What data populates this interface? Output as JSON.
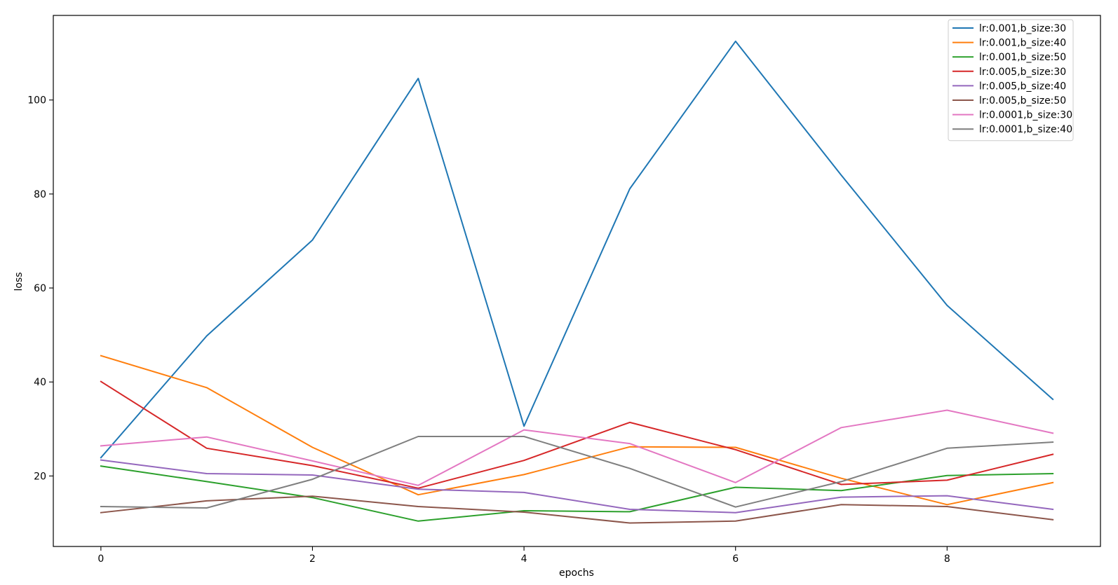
{
  "chart_data": {
    "type": "line",
    "title": "",
    "xlabel": "epochs",
    "ylabel": "loss",
    "xlim": [
      -0.45,
      9.45
    ],
    "ylim": [
      5,
      118
    ],
    "xticks": [
      0,
      2,
      4,
      6,
      8
    ],
    "yticks": [
      20,
      40,
      60,
      80,
      100
    ],
    "grid": false,
    "legend_position": "top-right",
    "x": [
      0,
      1,
      2,
      3,
      4,
      5,
      6,
      7,
      8,
      9
    ],
    "series": [
      {
        "name": "lr:0.001,b_size:30",
        "color": "#1f77b4",
        "values": [
          23.9,
          49.8,
          70.2,
          104.6,
          30.6,
          81.1,
          112.5,
          84.0,
          56.3,
          36.3
        ]
      },
      {
        "name": "lr:0.001,b_size:40",
        "color": "#ff7f0e",
        "values": [
          45.6,
          38.8,
          26.1,
          16.0,
          20.3,
          26.2,
          26.1,
          19.5,
          13.9,
          18.6
        ]
      },
      {
        "name": "lr:0.001,b_size:50",
        "color": "#2ca02c",
        "values": [
          22.1,
          18.8,
          15.4,
          10.4,
          12.6,
          12.4,
          17.6,
          16.9,
          20.1,
          20.5
        ]
      },
      {
        "name": "lr:0.005,b_size:30",
        "color": "#d62728",
        "values": [
          40.1,
          25.9,
          22.2,
          17.4,
          23.3,
          31.4,
          25.6,
          18.2,
          19.1,
          24.6
        ]
      },
      {
        "name": "lr:0.005,b_size:40",
        "color": "#9467bd",
        "values": [
          23.4,
          20.5,
          20.2,
          17.2,
          16.5,
          12.9,
          12.2,
          15.5,
          15.8,
          12.9
        ]
      },
      {
        "name": "lr:0.005,b_size:50",
        "color": "#8c564b",
        "values": [
          12.2,
          14.7,
          15.7,
          13.5,
          12.3,
          10.0,
          10.4,
          13.9,
          13.5,
          10.7
        ]
      },
      {
        "name": "lr:0.0001,b_size:30",
        "color": "#e377c2",
        "values": [
          26.4,
          28.3,
          23.2,
          18.0,
          29.8,
          26.9,
          18.6,
          30.3,
          34.0,
          29.1
        ]
      },
      {
        "name": "lr:0.0001,b_size:40",
        "color": "#7f7f7f",
        "values": [
          13.5,
          13.2,
          19.3,
          28.4,
          28.4,
          21.6,
          13.4,
          18.8,
          25.9,
          27.2
        ]
      }
    ]
  }
}
